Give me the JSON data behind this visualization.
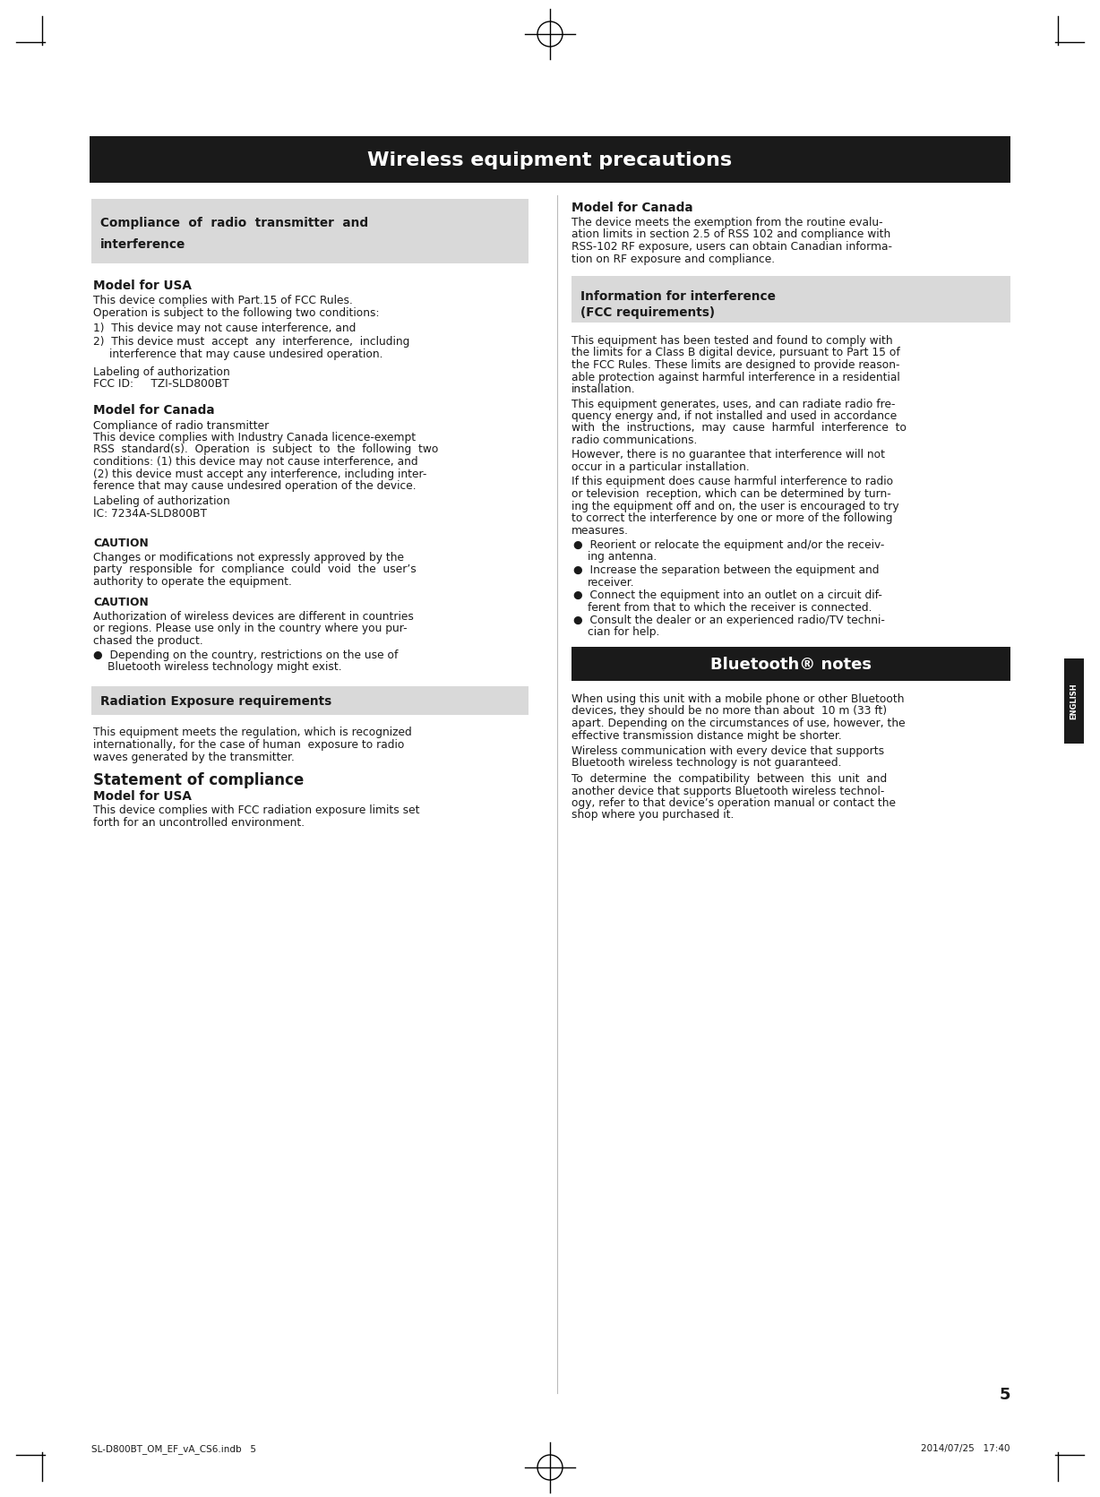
{
  "page_bg": "#ffffff",
  "title_bar_bg": "#1a1a1a",
  "title_text": "Wireless equipment precautions",
  "title_color": "#ffffff",
  "section_box_bg": "#d9d9d9",
  "section4_box_bg": "#1a1a1a",
  "section4_text_color": "#ffffff",
  "body_text_color": "#1a1a1a",
  "english_bar_color": "#1a1a1a",
  "page_number": "5",
  "footer_left": "SL-D800BT_OM_EF_vA_CS6.indb   5",
  "footer_right": "2014/07/25   17:40"
}
